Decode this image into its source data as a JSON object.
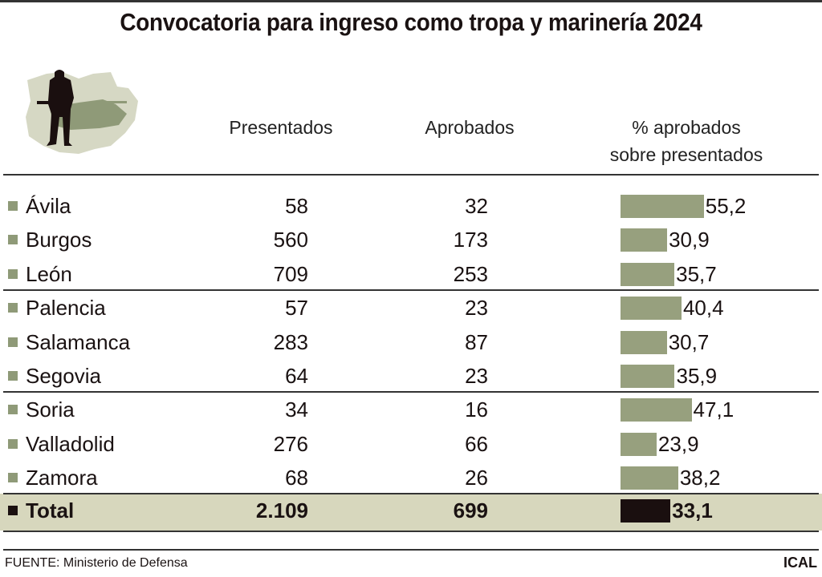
{
  "title": "Convocatoria para ingreso como tropa y marinería 2024",
  "columns": {
    "presentados": "Presentados",
    "aprobados": "Aprobados",
    "pct_line1": "% aprobados",
    "pct_line2": "sobre presentados"
  },
  "colors": {
    "bar": "#97a07e",
    "total_bar": "#1a0f0f",
    "total_bg": "#d7d7bd",
    "map": "#d6d8c4",
    "tank": "#8f9a78"
  },
  "chart_data": {
    "type": "table",
    "title": "Convocatoria para ingreso como tropa y marinería 2024",
    "rows": [
      {
        "label": "Ávila",
        "presentados": "58",
        "aprobados": "32",
        "pct": 55.2,
        "pct_label": "55,2"
      },
      {
        "label": "Burgos",
        "presentados": "560",
        "aprobados": "173",
        "pct": 30.9,
        "pct_label": "30,9"
      },
      {
        "label": "León",
        "presentados": "709",
        "aprobados": "253",
        "pct": 35.7,
        "pct_label": "35,7"
      },
      {
        "label": "Palencia",
        "presentados": "57",
        "aprobados": "23",
        "pct": 40.4,
        "pct_label": "40,4"
      },
      {
        "label": "Salamanca",
        "presentados": "283",
        "aprobados": "87",
        "pct": 30.7,
        "pct_label": "30,7"
      },
      {
        "label": "Segovia",
        "presentados": "64",
        "aprobados": "23",
        "pct": 35.9,
        "pct_label": "35,9"
      },
      {
        "label": "Soria",
        "presentados": "34",
        "aprobados": "16",
        "pct": 47.1,
        "pct_label": "47,1"
      },
      {
        "label": "Valladolid",
        "presentados": "276",
        "aprobados": "66",
        "pct": 23.9,
        "pct_label": "23,9"
      },
      {
        "label": "Zamora",
        "presentados": "68",
        "aprobados": "26",
        "pct": 38.2,
        "pct_label": "38,2"
      }
    ],
    "total": {
      "label": "Total",
      "presentados": "2.109",
      "aprobados": "699",
      "pct": 33.1,
      "pct_label": "33,1"
    }
  },
  "footer": {
    "source": "FUENTE: Ministerio de Defensa",
    "brand": "ICAL"
  }
}
